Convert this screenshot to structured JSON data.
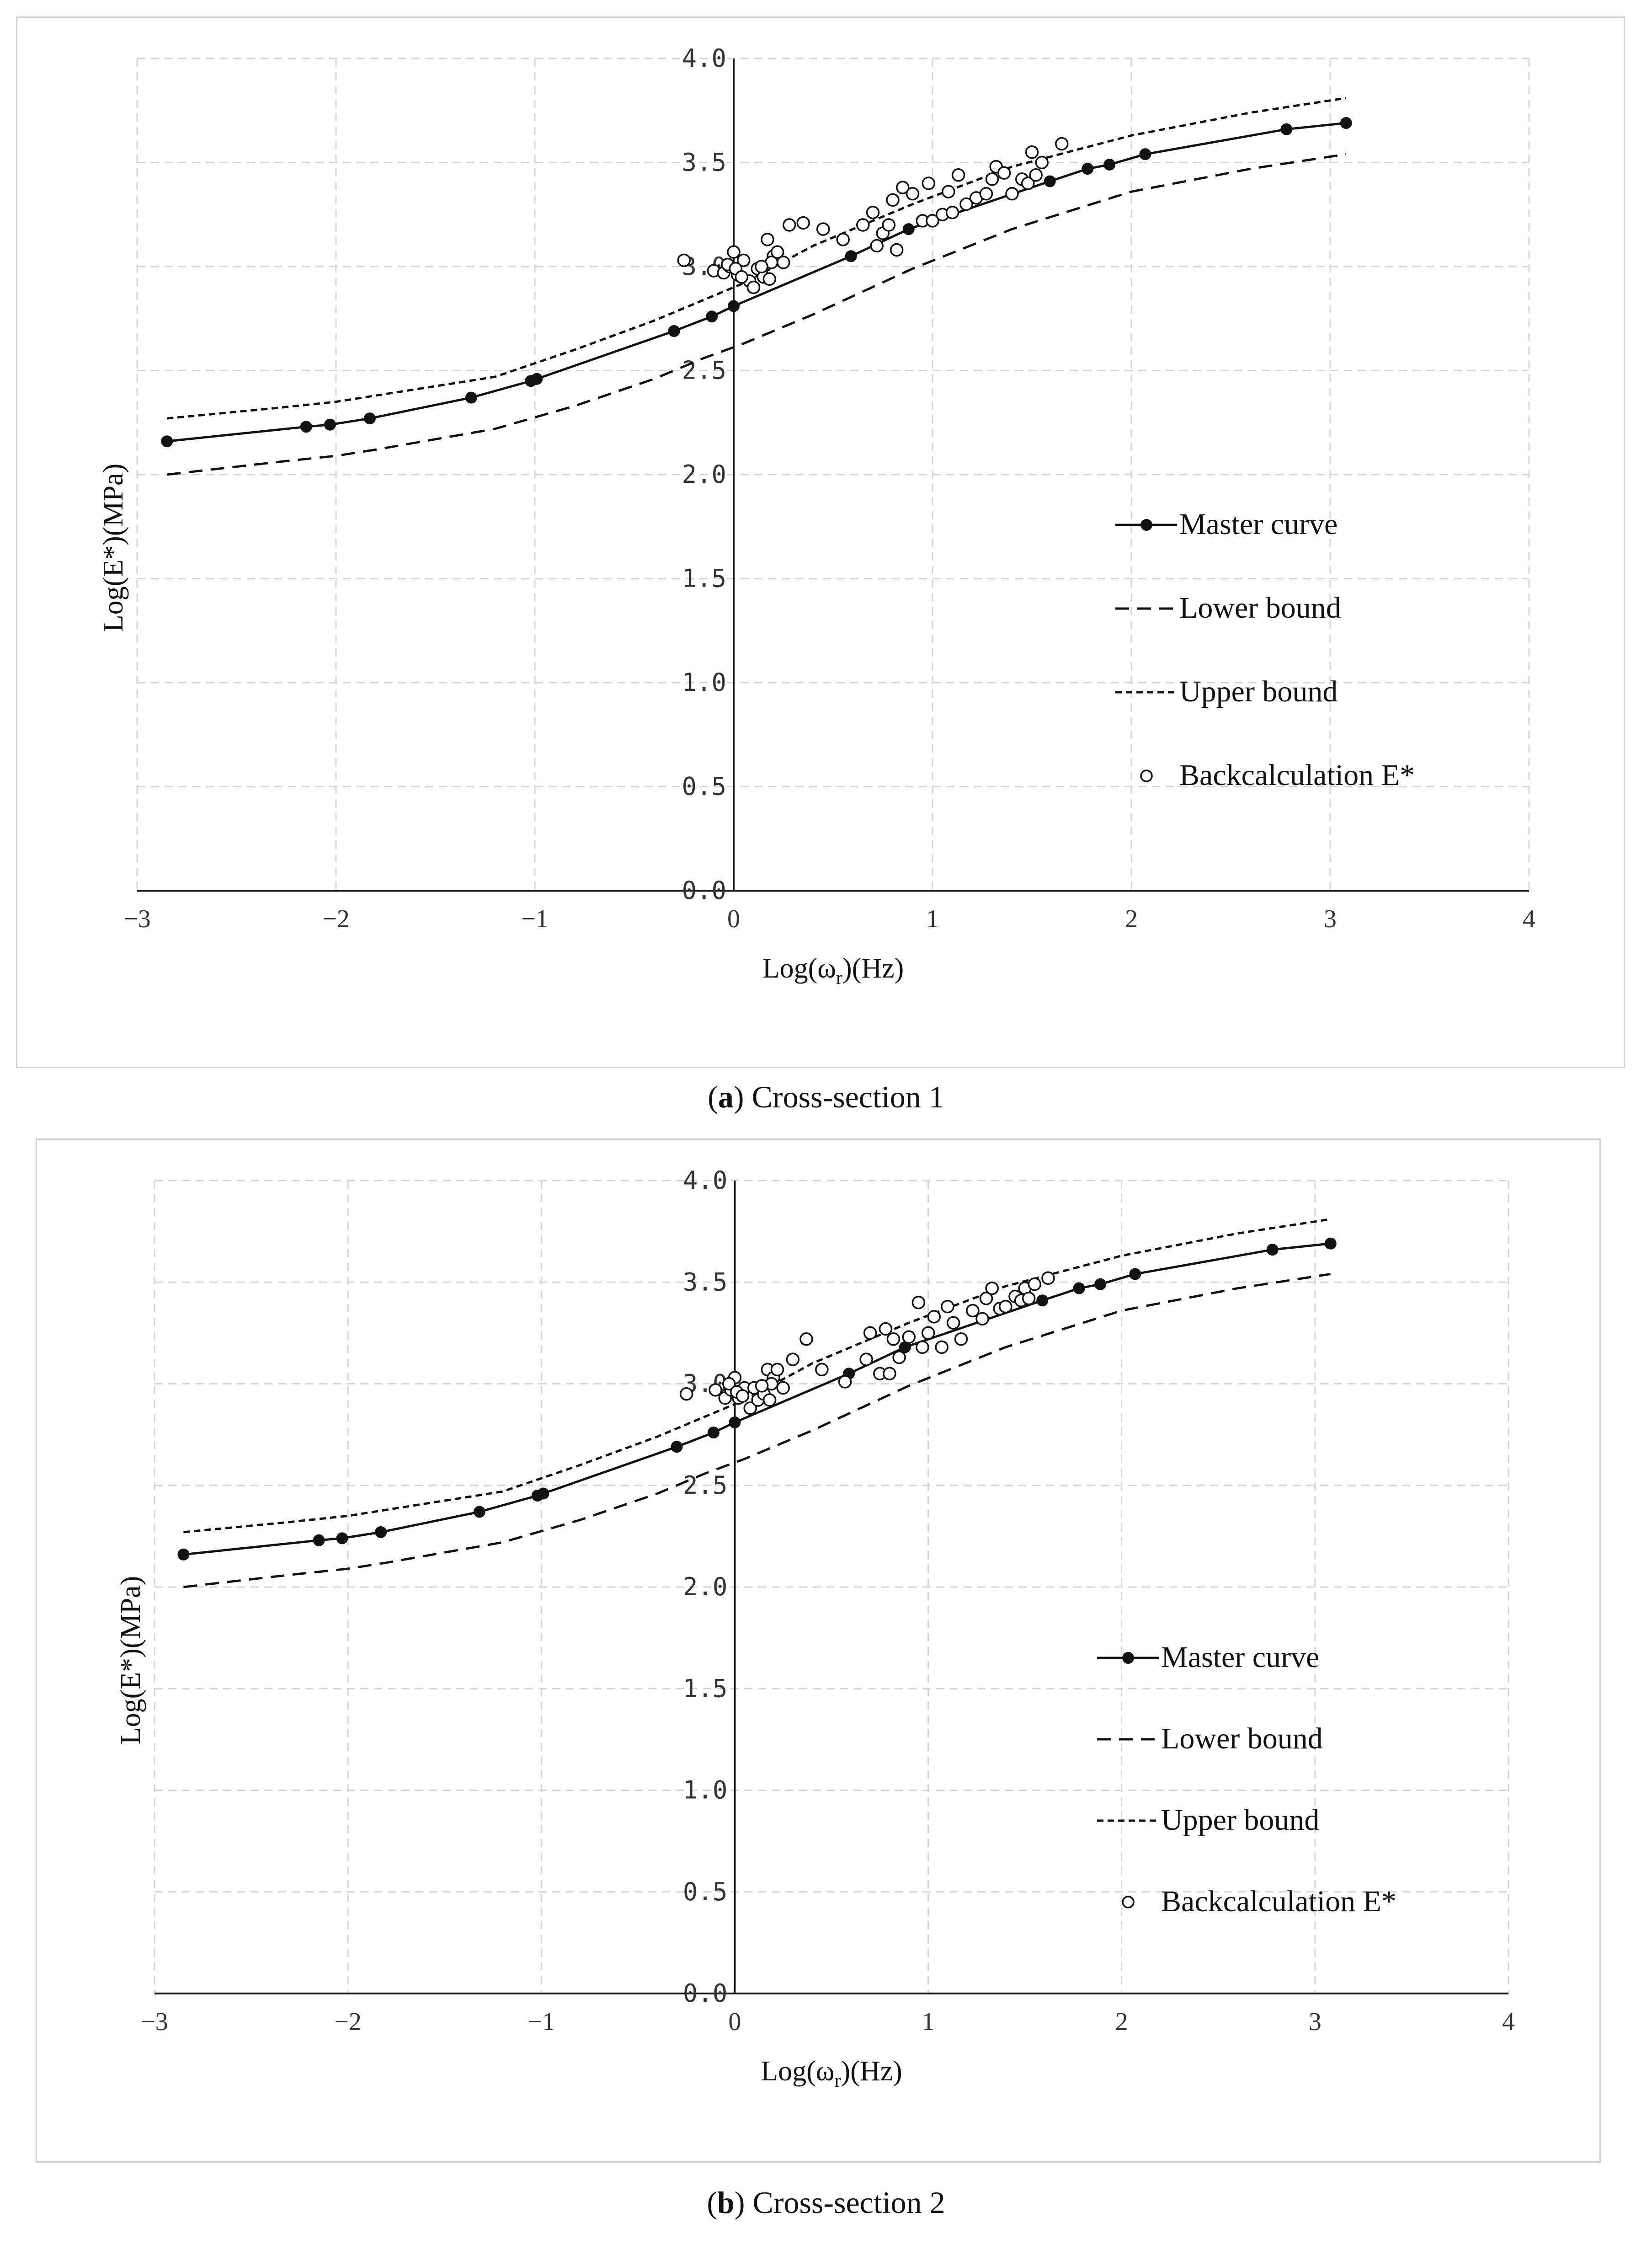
{
  "colors": {
    "line": "#111111",
    "grid": "#d4d4d4",
    "frame": "#cfcfcf",
    "background": "#ffffff"
  },
  "captions": [
    {
      "label": "a",
      "text": " Cross-section 1"
    },
    {
      "label": "b",
      "text": " Cross-section 2"
    }
  ],
  "chart_data": [
    {
      "type": "line",
      "title": "",
      "xlabel": "Log(ωr)(Hz)",
      "xlabel_main": "Log(ω",
      "xlabel_sub": "r",
      "xlabel_tail": ")(Hz)",
      "ylabel": "Log(E*)(MPa)",
      "xlim": [
        -3,
        4
      ],
      "ylim": [
        0.0,
        4.0
      ],
      "x_ticks": [
        "−3",
        "−2",
        "−1",
        "0",
        "1",
        "2",
        "3",
        "4"
      ],
      "y_ticks": [
        "0.0",
        "0.5",
        "1.0",
        "1.5",
        "2.0",
        "2.5",
        "3.0",
        "3.5",
        "4.0"
      ],
      "grid": true,
      "legend_position": "center-right",
      "series": [
        {
          "name": "Master curve",
          "style": "solid-marker",
          "x": [
            -2.85,
            -2.15,
            -2.03,
            -1.83,
            -1.32,
            -1.02,
            -0.99,
            -0.3,
            -0.11,
            0.0,
            0.59,
            0.88,
            1.59,
            1.78,
            1.89,
            2.07,
            2.78,
            3.08
          ],
          "y": [
            2.16,
            2.23,
            2.24,
            2.27,
            2.37,
            2.45,
            2.46,
            2.69,
            2.76,
            2.81,
            3.05,
            3.18,
            3.41,
            3.47,
            3.49,
            3.54,
            3.66,
            3.69
          ]
        },
        {
          "name": "Lower bound",
          "style": "long-dash",
          "x": [
            -2.85,
            -2.3,
            -2.0,
            -1.8,
            -1.2,
            -0.8,
            -0.4,
            -0.15,
            0.05,
            0.4,
            0.9,
            1.4,
            2.0,
            2.6,
            3.08
          ],
          "y": [
            2.0,
            2.06,
            2.09,
            2.12,
            2.22,
            2.33,
            2.46,
            2.56,
            2.63,
            2.77,
            2.99,
            3.18,
            3.36,
            3.47,
            3.54
          ]
        },
        {
          "name": "Upper bound",
          "style": "short-dash",
          "x": [
            -2.85,
            -2.3,
            -2.0,
            -1.8,
            -1.2,
            -0.8,
            -0.4,
            -0.15,
            0.05,
            0.4,
            0.9,
            1.4,
            2.0,
            2.6,
            3.08
          ],
          "y": [
            2.27,
            2.32,
            2.35,
            2.38,
            2.47,
            2.6,
            2.74,
            2.84,
            2.92,
            3.1,
            3.3,
            3.48,
            3.63,
            3.74,
            3.81
          ]
        },
        {
          "name": "Backcalculation E*",
          "style": "open-circle",
          "x": [
            -0.25,
            -0.1,
            -0.05,
            -0.02,
            0.0,
            0.02,
            0.05,
            0.08,
            0.1,
            0.12,
            0.15,
            0.17,
            0.18,
            0.2,
            0.22,
            0.25,
            0.28,
            0.35,
            0.45,
            0.55,
            0.65,
            0.7,
            0.72,
            0.75,
            0.78,
            0.8,
            0.82,
            0.85,
            0.9,
            0.95,
            0.98,
            1.0,
            1.05,
            1.08,
            1.1,
            1.13,
            1.17,
            1.22,
            1.27,
            1.3,
            1.32,
            1.36,
            1.4,
            1.45,
            1.48,
            1.5,
            1.52,
            1.55,
            1.65,
            -0.03,
            0.01,
            0.04,
            0.19,
            0.14
          ],
          "y": [
            3.03,
            2.98,
            2.97,
            3.0,
            3.07,
            2.96,
            3.03,
            2.93,
            2.9,
            2.99,
            2.95,
            3.13,
            2.94,
            3.05,
            3.07,
            3.02,
            3.2,
            3.21,
            3.18,
            3.13,
            3.2,
            3.26,
            3.1,
            3.16,
            3.2,
            3.32,
            3.08,
            3.38,
            3.35,
            3.22,
            3.4,
            3.22,
            3.25,
            3.36,
            3.26,
            3.44,
            3.3,
            3.33,
            3.35,
            3.42,
            3.48,
            3.45,
            3.35,
            3.42,
            3.4,
            3.55,
            3.44,
            3.5,
            3.59,
            3.01,
            2.99,
            2.95,
            3.02,
            3.0
          ]
        }
      ]
    },
    {
      "type": "line",
      "title": "",
      "xlabel": "Log(ωr)(Hz)",
      "xlabel_main": "Log(ω",
      "xlabel_sub": "r",
      "xlabel_tail": ")(Hz)",
      "ylabel": "Log(E*)(MPa)",
      "xlim": [
        -3,
        4
      ],
      "ylim": [
        0.0,
        4.0
      ],
      "x_ticks": [
        "−3",
        "−2",
        "−1",
        "0",
        "1",
        "2",
        "3",
        "4"
      ],
      "y_ticks": [
        "0.0",
        "0.5",
        "1.0",
        "1.5",
        "2.0",
        "2.5",
        "3.0",
        "3.5",
        "4.0"
      ],
      "grid": true,
      "legend_position": "center-right",
      "series": [
        {
          "name": "Master curve",
          "style": "solid-marker",
          "x": [
            -2.85,
            -2.15,
            -2.03,
            -1.83,
            -1.32,
            -1.02,
            -0.99,
            -0.3,
            -0.11,
            0.0,
            0.59,
            0.88,
            1.59,
            1.78,
            1.89,
            2.07,
            2.78,
            3.08
          ],
          "y": [
            2.16,
            2.23,
            2.24,
            2.27,
            2.37,
            2.45,
            2.46,
            2.69,
            2.76,
            2.81,
            3.05,
            3.18,
            3.41,
            3.47,
            3.49,
            3.54,
            3.66,
            3.69
          ]
        },
        {
          "name": "Lower bound",
          "style": "long-dash",
          "x": [
            -2.85,
            -2.3,
            -2.0,
            -1.8,
            -1.2,
            -0.8,
            -0.4,
            -0.15,
            0.05,
            0.4,
            0.9,
            1.4,
            2.0,
            2.6,
            3.08
          ],
          "y": [
            2.0,
            2.06,
            2.09,
            2.12,
            2.22,
            2.33,
            2.46,
            2.56,
            2.63,
            2.77,
            2.99,
            3.18,
            3.36,
            3.47,
            3.54
          ]
        },
        {
          "name": "Upper bound",
          "style": "short-dash",
          "x": [
            -2.85,
            -2.3,
            -2.0,
            -1.8,
            -1.2,
            -0.8,
            -0.4,
            -0.15,
            0.05,
            0.4,
            0.9,
            1.4,
            2.0,
            2.6,
            3.08
          ],
          "y": [
            2.27,
            2.32,
            2.35,
            2.38,
            2.47,
            2.6,
            2.74,
            2.84,
            2.92,
            3.1,
            3.3,
            3.48,
            3.63,
            3.74,
            3.81
          ]
        },
        {
          "name": "Backcalculation E*",
          "style": "open-circle",
          "x": [
            -0.25,
            -0.1,
            -0.05,
            -0.02,
            0.0,
            0.02,
            0.05,
            0.08,
            0.1,
            0.12,
            0.15,
            0.17,
            0.18,
            0.2,
            0.22,
            0.25,
            0.3,
            0.37,
            0.45,
            0.57,
            0.68,
            0.7,
            0.75,
            0.78,
            0.8,
            0.82,
            0.85,
            0.9,
            0.95,
            0.97,
            1.0,
            1.03,
            1.07,
            1.1,
            1.13,
            1.17,
            1.23,
            1.28,
            1.3,
            1.33,
            1.37,
            1.4,
            1.45,
            1.48,
            1.5,
            1.52,
            1.55,
            1.62,
            -0.03,
            0.01,
            0.04,
            0.19,
            0.14
          ],
          "y": [
            2.95,
            2.97,
            2.93,
            2.97,
            3.03,
            2.93,
            2.98,
            2.88,
            2.98,
            2.92,
            2.95,
            3.07,
            2.92,
            3.03,
            3.07,
            2.98,
            3.12,
            3.22,
            3.07,
            3.01,
            3.12,
            3.25,
            3.05,
            3.27,
            3.05,
            3.22,
            3.13,
            3.23,
            3.4,
            3.18,
            3.25,
            3.33,
            3.18,
            3.38,
            3.3,
            3.22,
            3.36,
            3.32,
            3.42,
            3.47,
            3.37,
            3.38,
            3.43,
            3.41,
            3.47,
            3.42,
            3.49,
            3.52,
            3.0,
            2.96,
            2.94,
            3.0,
            2.99
          ]
        }
      ]
    }
  ]
}
